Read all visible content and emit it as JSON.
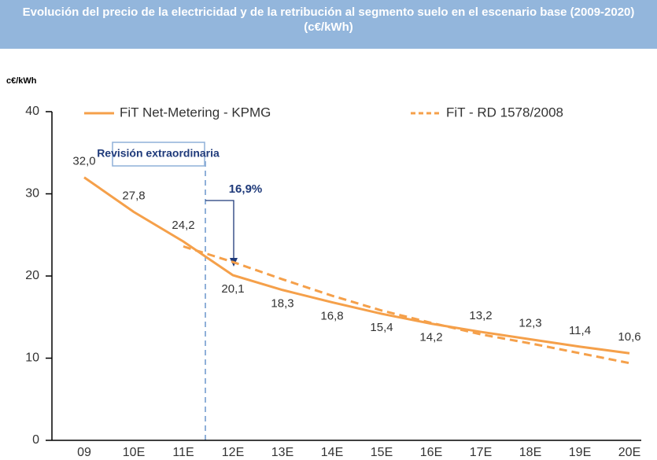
{
  "chart_data": {
    "type": "line",
    "title": "Evolución del precio de la electricidad y de la retribución al segmento suelo en el escenario base (2009-2020) (c€/kWh)",
    "y_label": "c€/kWh",
    "annotations": [
      "Revisión extraordinaria",
      "16,9%"
    ],
    "categories": [
      "09",
      "10E",
      "11E",
      "12E",
      "13E",
      "14E",
      "15E",
      "16E",
      "17E",
      "18E",
      "19E",
      "20E"
    ],
    "series": [
      {
        "name": "FiT Net-Metering - KPMG",
        "color": "#f5a04a",
        "dashed": false,
        "values": [
          32.0,
          27.8,
          24.2,
          20.1,
          18.3,
          16.8,
          15.4,
          14.2,
          13.2,
          12.3,
          11.4,
          10.6
        ],
        "value_labels": [
          "32,0",
          "27,8",
          "24,2",
          "20,1",
          "18,3",
          "16,8",
          "15,4",
          "14,2",
          "13,2",
          "12,3",
          "11,4",
          "10,6"
        ]
      },
      {
        "name": "FiT - RD 1578/2008",
        "color": "#f5a04a",
        "dashed": true,
        "values": [
          null,
          null,
          23.6,
          21.7,
          19.6,
          17.6,
          15.8,
          14.3,
          12.9,
          11.8,
          10.6,
          9.4
        ]
      }
    ],
    "ylim": [
      0,
      40
    ],
    "yticks": [
      0,
      10,
      20,
      30,
      40
    ],
    "grid": false
  }
}
